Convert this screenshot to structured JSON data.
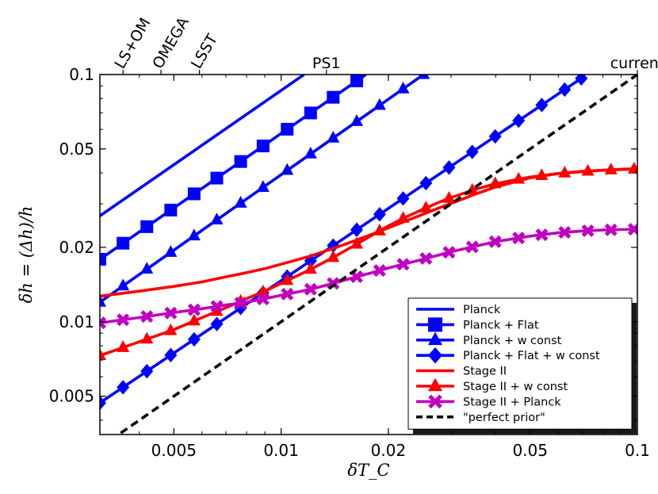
{
  "chart_data": {
    "type": "line",
    "scale": "log-log",
    "xlabel": "δT_C",
    "ylabel": "δh = (Δh)/h",
    "xlim": [
      0.0031,
      0.1
    ],
    "ylim": [
      0.0035,
      0.1
    ],
    "x_ticks": [
      {
        "value": 0.005,
        "label": "0.005"
      },
      {
        "value": 0.01,
        "label": "0.01"
      },
      {
        "value": 0.02,
        "label": "0.02"
      },
      {
        "value": 0.05,
        "label": "0.05"
      },
      {
        "value": 0.1,
        "label": "0.1"
      }
    ],
    "y_ticks": [
      {
        "value": 0.005,
        "label": "0.005"
      },
      {
        "value": 0.01,
        "label": "0.01"
      },
      {
        "value": 0.02,
        "label": "0.02"
      },
      {
        "value": 0.05,
        "label": "0.05"
      },
      {
        "value": 0.1,
        "label": "0.1"
      }
    ],
    "top_labels": [
      {
        "x": 0.0036,
        "text": "LS+OM",
        "rotated": true
      },
      {
        "x": 0.0046,
        "text": "OMEGA",
        "rotated": true
      },
      {
        "x": 0.0059,
        "text": "LSST",
        "rotated": true
      },
      {
        "x": 0.0134,
        "text": "PS1",
        "rotated": false
      },
      {
        "x": 0.1,
        "text": "current",
        "rotated": false
      }
    ],
    "series": [
      {
        "name": "Planck",
        "color": "#0000ff",
        "marker": "none",
        "dash": "solid",
        "x": [
          0.0031,
          0.0116
        ],
        "y": [
          0.0268,
          0.1
        ]
      },
      {
        "name": "Planck + Flat",
        "color": "#0000ff",
        "marker": "square",
        "dash": "solid",
        "x": [
          0.0031,
          0.0173
        ],
        "y": [
          0.0179,
          0.1
        ],
        "marker_x": [
          0.0031,
          0.0036,
          0.0042,
          0.0049,
          0.0057,
          0.0066,
          0.0077,
          0.0089,
          0.0104,
          0.0121,
          0.014,
          0.0163
        ]
      },
      {
        "name": "Planck + w const",
        "color": "#0000ff",
        "marker": "triangle",
        "dash": "solid",
        "x": [
          0.0031,
          0.0251
        ],
        "y": [
          0.012,
          0.1
        ],
        "marker_x": [
          0.0031,
          0.0036,
          0.0042,
          0.0049,
          0.0057,
          0.0066,
          0.0077,
          0.0089,
          0.0104,
          0.0121,
          0.014,
          0.0163,
          0.0189,
          0.022,
          0.0251
        ]
      },
      {
        "name": "Planck + Flat + w const",
        "color": "#0000ff",
        "marker": "diamond",
        "dash": "solid",
        "x": [
          0.0031,
          0.0696
        ],
        "y": [
          0.0047,
          0.0965
        ],
        "marker_x": [
          0.0031,
          0.0036,
          0.0042,
          0.0049,
          0.0057,
          0.0066,
          0.0077,
          0.0089,
          0.0104,
          0.0121,
          0.014,
          0.0163,
          0.0189,
          0.022,
          0.0255,
          0.0296,
          0.0344,
          0.0399,
          0.0464,
          0.0539,
          0.0625,
          0.0696
        ]
      },
      {
        "name": "Stage II",
        "color": "#ff0000",
        "marker": "none",
        "dash": "solid",
        "x": [
          0.0031,
          0.004,
          0.005,
          0.006,
          0.007,
          0.008,
          0.009,
          0.01,
          0.012,
          0.014,
          0.016,
          0.018,
          0.02,
          0.022,
          0.025,
          0.028,
          0.03,
          0.035,
          0.04,
          0.05,
          0.06,
          0.07,
          0.08,
          0.09,
          0.1
        ],
        "y": [
          0.0127,
          0.0133,
          0.0139,
          0.0145,
          0.0152,
          0.0158,
          0.0164,
          0.0171,
          0.0184,
          0.0198,
          0.0212,
          0.0226,
          0.024,
          0.0253,
          0.0272,
          0.029,
          0.0301,
          0.0328,
          0.0351,
          0.0382,
          0.0398,
          0.0406,
          0.041,
          0.0414,
          0.0416
        ]
      },
      {
        "name": "Stage II + w const",
        "color": "#ff0000",
        "marker": "triangle",
        "dash": "solid",
        "x": [
          0.0031,
          0.004,
          0.005,
          0.006,
          0.007,
          0.008,
          0.009,
          0.01,
          0.012,
          0.014,
          0.016,
          0.018,
          0.02,
          0.022,
          0.025,
          0.028,
          0.03,
          0.035,
          0.04,
          0.05,
          0.06,
          0.07,
          0.08,
          0.09,
          0.1
        ],
        "y": [
          0.0073,
          0.0083,
          0.0093,
          0.0104,
          0.0114,
          0.0124,
          0.0133,
          0.0143,
          0.0162,
          0.0182,
          0.0203,
          0.0224,
          0.0244,
          0.0262,
          0.0285,
          0.0306,
          0.0318,
          0.0343,
          0.0362,
          0.0385,
          0.0398,
          0.0405,
          0.041,
          0.0413,
          0.0415
        ],
        "marker_x": [
          0.0031,
          0.0036,
          0.0042,
          0.0049,
          0.0057,
          0.0066,
          0.0077,
          0.0089,
          0.0104,
          0.0121,
          0.014,
          0.0163,
          0.0189,
          0.022,
          0.0255,
          0.0296,
          0.0344,
          0.0399,
          0.0464,
          0.0539,
          0.0625,
          0.0726,
          0.0843,
          0.0979
        ]
      },
      {
        "name": "Stage II + Planck",
        "color": "#bf00bf",
        "marker": "x",
        "dash": "solid",
        "x": [
          0.0031,
          0.004,
          0.005,
          0.006,
          0.007,
          0.008,
          0.009,
          0.01,
          0.012,
          0.014,
          0.016,
          0.018,
          0.02,
          0.025,
          0.03,
          0.035,
          0.04,
          0.05,
          0.06,
          0.07,
          0.08,
          0.09,
          0.1
        ],
        "y": [
          0.0099,
          0.0104,
          0.0109,
          0.0113,
          0.0117,
          0.012,
          0.0124,
          0.0128,
          0.0135,
          0.0143,
          0.0151,
          0.0158,
          0.0165,
          0.0179,
          0.0192,
          0.0202,
          0.0211,
          0.0222,
          0.0229,
          0.0233,
          0.0235,
          0.0236,
          0.0237
        ],
        "marker_x": [
          0.0031,
          0.0036,
          0.0042,
          0.0049,
          0.0057,
          0.0066,
          0.0077,
          0.0089,
          0.0104,
          0.0121,
          0.014,
          0.0163,
          0.0189,
          0.022,
          0.0255,
          0.0296,
          0.0344,
          0.0399,
          0.0464,
          0.0539,
          0.0625,
          0.0726,
          0.0843,
          0.0979
        ]
      },
      {
        "name": "\"perfect prior\"",
        "color": "#000000",
        "marker": "none",
        "dash": "dashed",
        "x": [
          0.0031,
          0.1
        ],
        "y": [
          0.0031,
          0.1
        ]
      }
    ],
    "legend": {
      "placement": "lower-right"
    }
  }
}
